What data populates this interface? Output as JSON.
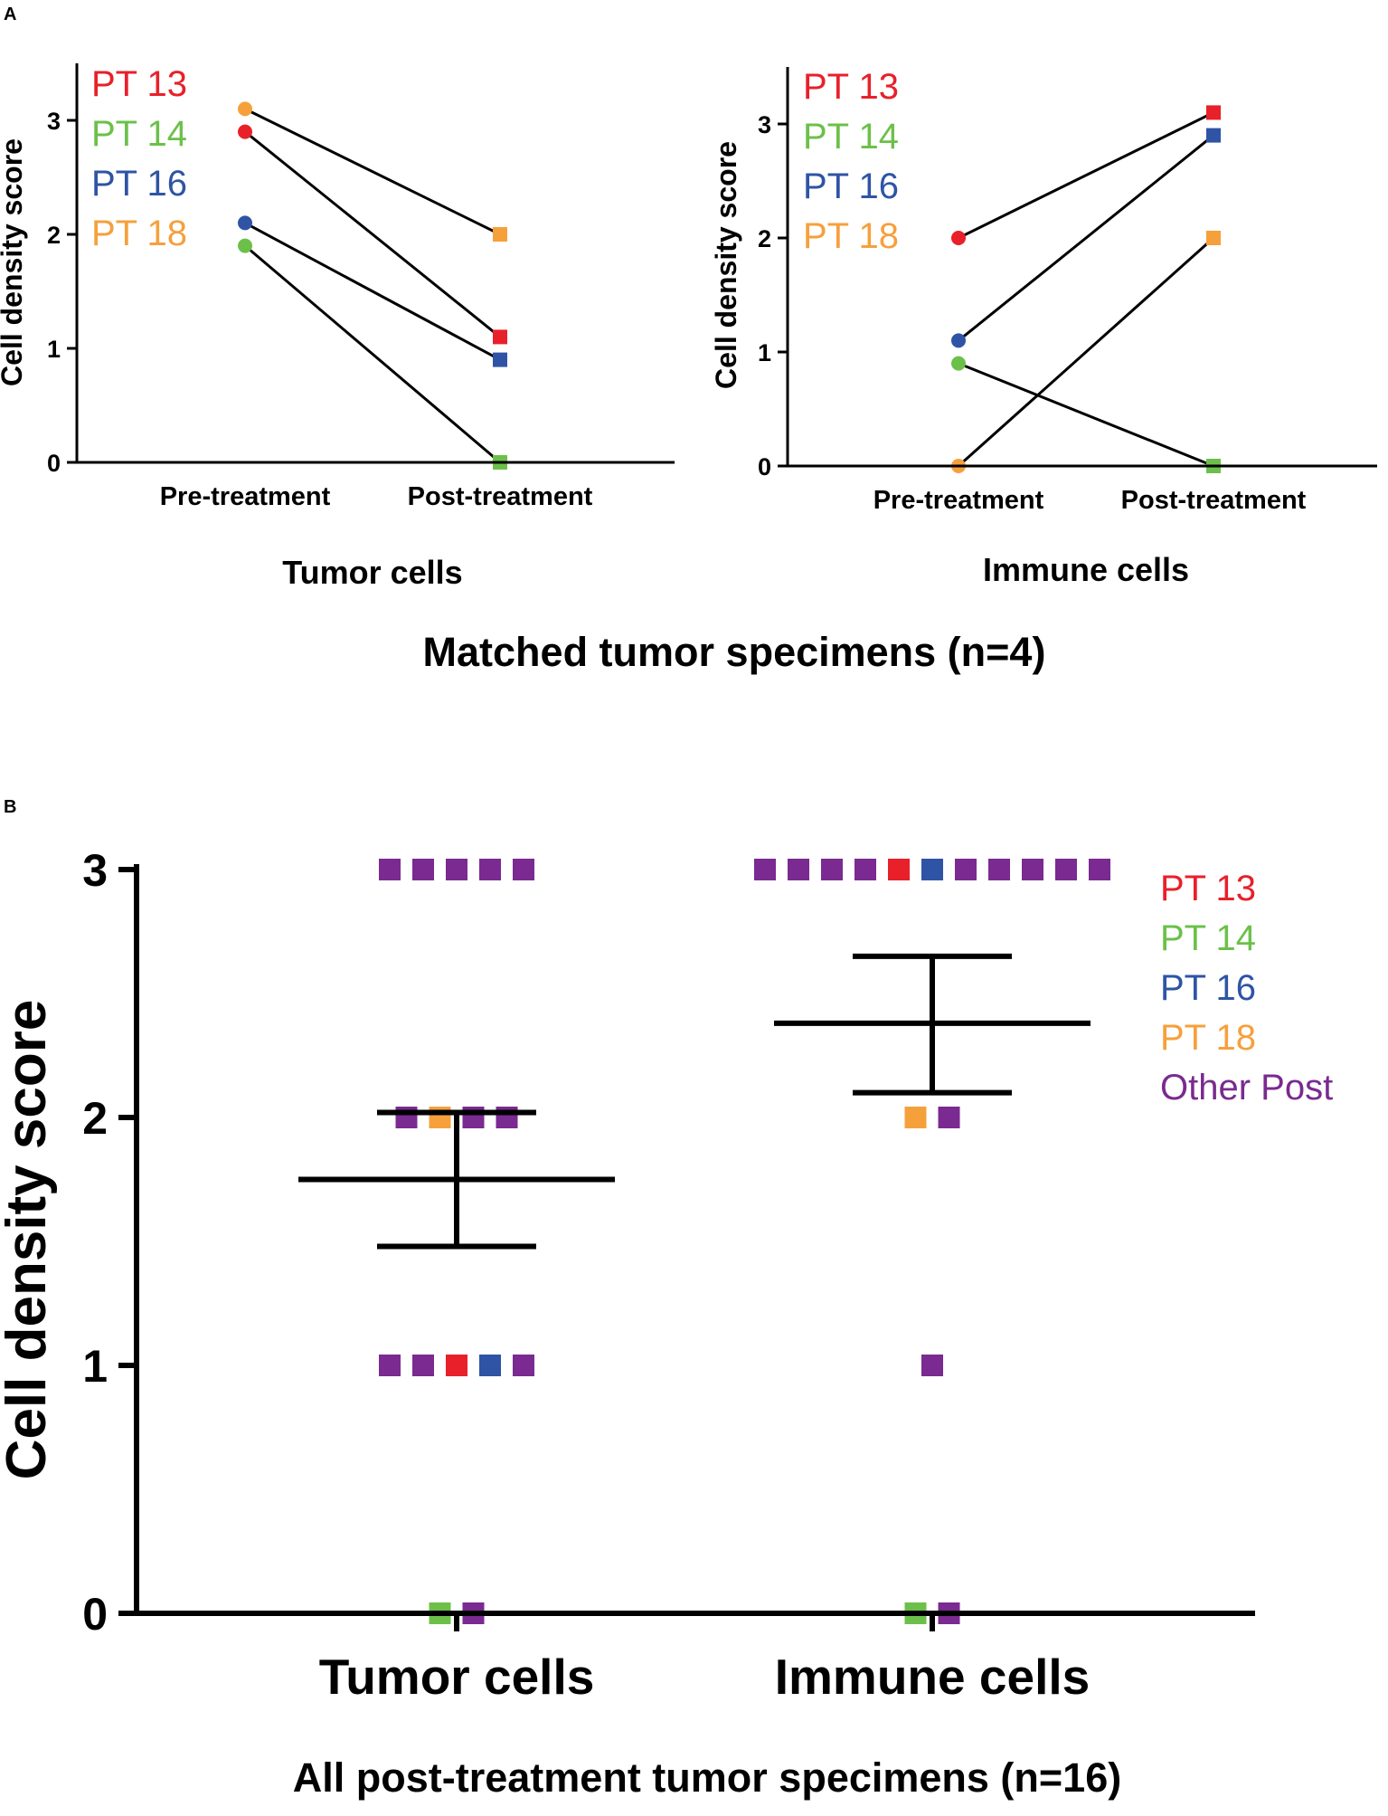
{
  "colors": {
    "PT 13": "#e8202a",
    "PT 14": "#6cc04a",
    "PT 16": "#2f54a5",
    "PT 18": "#f6a03c",
    "Other Post": "#7a2a90",
    "axis": "#000000"
  },
  "panel_a": {
    "letter": "A",
    "title": "Matched tumor specimens (n=4)"
  },
  "panel_b": {
    "letter": "B"
  },
  "chart_data": [
    {
      "id": "a_tumor",
      "type": "line",
      "title": "Tumor cells",
      "xlabel": "",
      "ylabel": "Cell density score",
      "categories": [
        "Pre-treatment",
        "Post-treatment"
      ],
      "ylim": [
        0,
        3.5
      ],
      "yticks": [
        "0",
        "1",
        "2",
        "3"
      ],
      "legend": [
        "PT 13",
        "PT 14",
        "PT 16",
        "PT 18"
      ],
      "legend_position": "top-left",
      "series": [
        {
          "name": "PT 13",
          "values": [
            2.9,
            1.1
          ]
        },
        {
          "name": "PT 14",
          "values": [
            1.9,
            0.0
          ]
        },
        {
          "name": "PT 16",
          "values": [
            2.1,
            0.9
          ]
        },
        {
          "name": "PT 18",
          "values": [
            3.1,
            2.0
          ]
        }
      ]
    },
    {
      "id": "a_immune",
      "type": "line",
      "title": "Immune cells",
      "xlabel": "",
      "ylabel": "Cell density score",
      "categories": [
        "Pre-treatment",
        "Post-treatment"
      ],
      "ylim": [
        0,
        3.5
      ],
      "yticks": [
        "0",
        "1",
        "2",
        "3"
      ],
      "legend": [
        "PT 13",
        "PT 14",
        "PT 16",
        "PT 18"
      ],
      "legend_position": "top-left",
      "series": [
        {
          "name": "PT 13",
          "values": [
            2.0,
            3.1
          ]
        },
        {
          "name": "PT 14",
          "values": [
            0.9,
            0.0
          ]
        },
        {
          "name": "PT 16",
          "values": [
            1.1,
            2.9
          ]
        },
        {
          "name": "PT 18",
          "values": [
            0.0,
            2.0
          ]
        }
      ]
    },
    {
      "id": "b_all",
      "type": "scatter",
      "title": "All post-treatment tumor specimens (n=16)",
      "xlabel": "",
      "ylabel": "Cell density score",
      "categories": [
        "Tumor cells",
        "Immune cells"
      ],
      "ylim": [
        0,
        3
      ],
      "yticks": [
        "0",
        "1",
        "2",
        "3"
      ],
      "legend": [
        "PT 13",
        "PT 14",
        "PT 16",
        "PT 18",
        "Other Post"
      ],
      "legend_position": "top-right",
      "groups": [
        {
          "category": "Tumor cells",
          "mean": 1.75,
          "error_upper": 2.02,
          "error_lower": 1.48,
          "rows": [
            {
              "y": 3,
              "points": [
                "Other Post",
                "Other Post",
                "Other Post",
                "Other Post",
                "Other Post"
              ]
            },
            {
              "y": 2,
              "points": [
                "Other Post",
                "PT 18",
                "Other Post",
                "Other Post"
              ]
            },
            {
              "y": 1,
              "points": [
                "Other Post",
                "Other Post",
                "PT 13",
                "PT 16",
                "Other Post"
              ]
            },
            {
              "y": 0,
              "points": [
                "PT 14",
                "Other Post"
              ]
            }
          ]
        },
        {
          "category": "Immune cells",
          "mean": 2.38,
          "error_upper": 2.65,
          "error_lower": 2.1,
          "rows": [
            {
              "y": 3,
              "points": [
                "Other Post",
                "Other Post",
                "Other Post",
                "Other Post",
                "PT 13",
                "PT 16",
                "Other Post",
                "Other Post",
                "Other Post",
                "Other Post",
                "Other Post"
              ]
            },
            {
              "y": 2,
              "points": [
                "PT 18",
                "Other Post"
              ]
            },
            {
              "y": 1,
              "points": [
                "Other Post"
              ]
            },
            {
              "y": 0,
              "points": [
                "PT 14",
                "Other Post"
              ]
            }
          ]
        }
      ]
    }
  ]
}
